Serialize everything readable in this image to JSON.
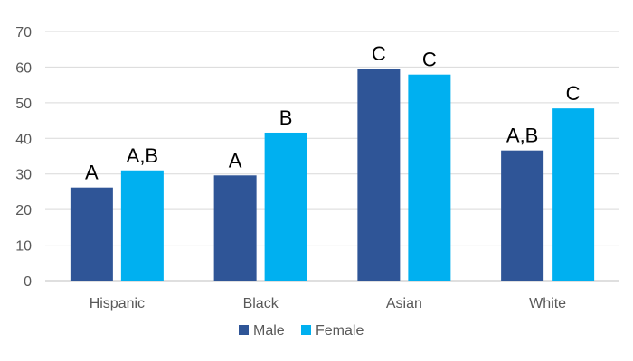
{
  "chart_data": {
    "type": "bar",
    "categories": [
      "Hispanic",
      "Black",
      "Asian",
      "White"
    ],
    "series": [
      {
        "name": "Male",
        "color": "#2F5597",
        "values": [
          26.2,
          29.6,
          59.6,
          36.6
        ],
        "labels": [
          "A",
          "A",
          "C",
          "A,B"
        ]
      },
      {
        "name": "Female",
        "color": "#00B0F0",
        "values": [
          31.0,
          41.6,
          57.9,
          48.4
        ],
        "labels": [
          "A,B",
          "B",
          "C",
          "C"
        ]
      }
    ],
    "ylim": [
      0,
      70
    ],
    "yticks": [
      "0",
      "10",
      "20",
      "30",
      "40",
      "50",
      "60",
      "70"
    ],
    "title": "",
    "xlabel": "",
    "ylabel": "",
    "grid": true,
    "legend": "bottom-center"
  }
}
